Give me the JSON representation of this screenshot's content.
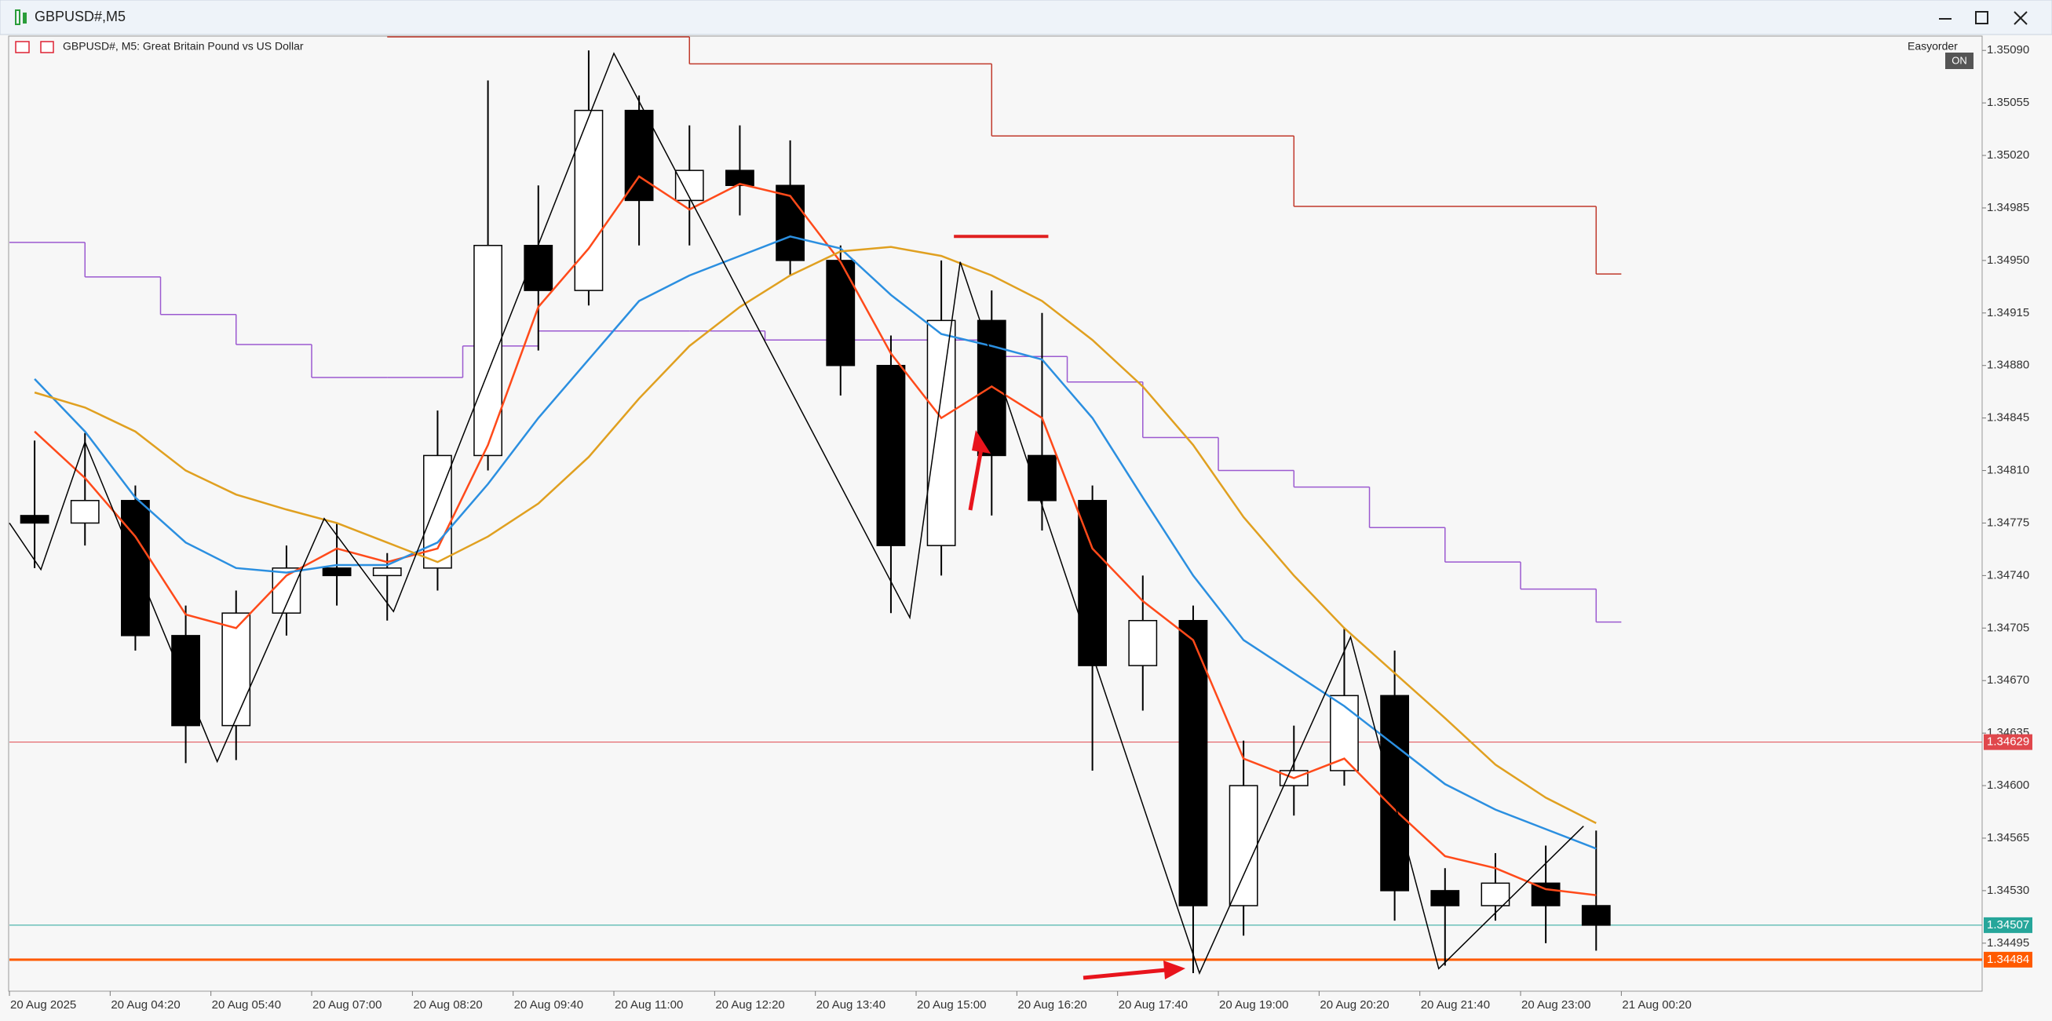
{
  "window": {
    "title": "GBPUSD#,M5",
    "expert": "Easyorder",
    "expert_state": "ON"
  },
  "chart_data": {
    "type": "candlestick",
    "title": "GBPUSD#, M5:  Great Britain Pound vs US Dollar",
    "x": [
      "20 Aug 03:00",
      "20 Aug 03:40",
      "20 Aug 04:20",
      "20 Aug 05:00",
      "20 Aug 05:40",
      "20 Aug 06:20",
      "20 Aug 07:00",
      "20 Aug 07:40",
      "20 Aug 08:20",
      "20 Aug 09:00",
      "20 Aug 09:40",
      "20 Aug 10:20",
      "20 Aug 11:00",
      "20 Aug 11:40",
      "20 Aug 12:20",
      "20 Aug 13:00",
      "20 Aug 13:40",
      "20 Aug 14:20",
      "20 Aug 15:00",
      "20 Aug 15:40",
      "20 Aug 16:20",
      "20 Aug 17:00",
      "20 Aug 17:40",
      "20 Aug 18:20",
      "20 Aug 19:00",
      "20 Aug 19:40",
      "20 Aug 20:20",
      "20 Aug 21:00",
      "20 Aug 21:40",
      "20 Aug 22:20",
      "20 Aug 23:00",
      "20 Aug 23:40"
    ],
    "open": [
      1.3478,
      1.34775,
      1.3479,
      1.347,
      1.3464,
      1.34715,
      1.34745,
      1.3474,
      1.34745,
      1.3482,
      1.3496,
      1.3493,
      1.3505,
      1.3499,
      1.3501,
      1.35,
      1.3495,
      1.3488,
      1.3476,
      1.3491,
      1.3482,
      1.3479,
      1.3468,
      1.3471,
      1.3452,
      1.346,
      1.3461,
      1.3466,
      1.3453,
      1.3452,
      1.34535,
      1.3452
    ],
    "high": [
      1.3483,
      1.34835,
      1.348,
      1.3472,
      1.3473,
      1.3476,
      1.34775,
      1.34755,
      1.3485,
      1.3507,
      1.35,
      1.3509,
      1.3506,
      1.3504,
      1.3504,
      1.3503,
      1.3496,
      1.349,
      1.3495,
      1.3493,
      1.34915,
      1.348,
      1.3474,
      1.3472,
      1.3463,
      1.3464,
      1.34705,
      1.3469,
      1.34545,
      1.34555,
      1.3456,
      1.3457
    ],
    "low": [
      1.34745,
      1.3476,
      1.3469,
      1.34615,
      1.34617,
      1.347,
      1.3472,
      1.3471,
      1.3473,
      1.3481,
      1.3489,
      1.3492,
      1.3496,
      1.3496,
      1.3498,
      1.3494,
      1.3486,
      1.34715,
      1.3474,
      1.3478,
      1.3477,
      1.3461,
      1.3465,
      1.34475,
      1.345,
      1.3458,
      1.346,
      1.3451,
      1.3448,
      1.3451,
      1.34495,
      1.3449
    ],
    "close": [
      1.34775,
      1.3479,
      1.347,
      1.3464,
      1.34715,
      1.34745,
      1.3474,
      1.34745,
      1.3482,
      1.3496,
      1.3493,
      1.3505,
      1.3499,
      1.3501,
      1.35,
      1.3495,
      1.3488,
      1.3476,
      1.3491,
      1.3482,
      1.3479,
      1.3468,
      1.3471,
      1.3452,
      1.346,
      1.3461,
      1.3466,
      1.3453,
      1.3452,
      1.34535,
      1.3452,
      1.34507
    ],
    "up_color": "#ffffff",
    "down_color": "#000000",
    "candle_border": "#000000",
    "series": [
      {
        "color": "#ff4a1a",
        "values": [
          1.34836,
          1.34805,
          1.34766,
          1.34714,
          1.34705,
          1.3474,
          1.34758,
          1.34749,
          1.34758,
          1.34827,
          1.34919,
          1.34958,
          1.35006,
          1.34984,
          1.35001,
          1.34993,
          1.34949,
          1.34888,
          1.34845,
          1.34866,
          1.34845,
          1.34758,
          1.34723,
          1.34697,
          1.34618,
          1.34605,
          1.34618,
          1.34584,
          1.34553,
          1.34545,
          1.34531,
          1.34527
        ]
      },
      {
        "color": "#2b8fe0",
        "values": [
          1.34871,
          1.34836,
          1.34792,
          1.34762,
          1.34745,
          1.34742,
          1.34747,
          1.34747,
          1.34762,
          1.34801,
          1.34845,
          1.34884,
          1.34923,
          1.3494,
          1.34953,
          1.34966,
          1.34958,
          1.34927,
          1.34901,
          1.34893,
          1.34884,
          1.34845,
          1.34792,
          1.3474,
          1.34697,
          1.34675,
          1.34653,
          1.34627,
          1.34601,
          1.34584,
          1.34571,
          1.34558
        ]
      },
      {
        "color": "#e0a020",
        "values": [
          1.34862,
          1.34852,
          1.34836,
          1.3481,
          1.34794,
          1.34784,
          1.34775,
          1.34762,
          1.34749,
          1.34766,
          1.34788,
          1.34819,
          1.34858,
          1.34893,
          1.34919,
          1.3494,
          1.34956,
          1.34959,
          1.34953,
          1.3494,
          1.34923,
          1.34897,
          1.34866,
          1.34827,
          1.34779,
          1.3474,
          1.34705,
          1.34675,
          1.34645,
          1.34614,
          1.34592,
          1.34575
        ]
      }
    ],
    "steps": [
      {
        "color": "#9b59d0",
        "x": [
          "20 Aug 03:00",
          "20 Aug 04:00",
          "20 Aug 05:00",
          "20 Aug 06:00",
          "20 Aug 07:00",
          "20 Aug 08:00",
          "20 Aug 09:00",
          "20 Aug 10:00",
          "20 Aug 11:00",
          "20 Aug 12:00",
          "20 Aug 13:00",
          "20 Aug 14:00",
          "20 Aug 15:00",
          "20 Aug 16:00",
          "20 Aug 17:00",
          "20 Aug 18:00",
          "20 Aug 19:00",
          "20 Aug 20:00",
          "20 Aug 21:00",
          "20 Aug 22:00",
          "20 Aug 23:00",
          "21 Aug 00:00"
        ],
        "values": [
          1.34962,
          1.34939,
          1.34914,
          1.34894,
          1.34872,
          1.34872,
          1.34893,
          1.34903,
          1.34903,
          1.34903,
          1.34897,
          1.34897,
          1.34897,
          1.34886,
          1.34869,
          1.34832,
          1.3481,
          1.34799,
          1.34772,
          1.34749,
          1.34731,
          1.34709
        ]
      },
      {
        "color": "#c0392b",
        "x": [
          "20 Aug 08:00",
          "20 Aug 12:00",
          "20 Aug 16:00",
          "20 Aug 20:00",
          "21 Aug 00:00"
        ],
        "values": [
          1.35099,
          1.35081,
          1.35033,
          1.34986,
          1.34941
        ]
      }
    ],
    "zigzag": {
      "color": "#000000",
      "x": [
        "20 Aug 03:00",
        "20 Aug 03:25",
        "20 Aug 04:00",
        "20 Aug 05:45",
        "20 Aug 07:10",
        "20 Aug 08:05",
        "20 Aug 11:00",
        "20 Aug 14:55",
        "20 Aug 15:35",
        "20 Aug 18:45",
        "20 Aug 20:45",
        "20 Aug 21:55",
        "20 Aug 23:50"
      ],
      "values": [
        1.34775,
        1.34744,
        1.34829,
        1.34616,
        1.34778,
        1.34716,
        1.35088,
        1.34712,
        1.34949,
        1.34475,
        1.34699,
        1.34478,
        1.34573
      ]
    },
    "segment": {
      "color": "#e02020",
      "x": [
        "20 Aug 15:30",
        "20 Aug 16:45"
      ],
      "value": 1.34966
    },
    "levels": [
      {
        "value": 1.34629,
        "color": "#e0474c",
        "width": 1
      },
      {
        "value": 1.34507,
        "color": "#26a69a",
        "width": 1
      },
      {
        "value": 1.34484,
        "color": "#ff5a00",
        "width": 3
      }
    ],
    "ylim": [
      1.34463,
      1.35099
    ],
    "yticks": [
      {
        "value": 1.3509,
        "label": "1.35090"
      },
      1.35055,
      {
        "value": 1.3502,
        "label": "1.35020"
      },
      1.34985,
      {
        "value": 1.3495,
        "label": "1.34950"
      },
      1.34915,
      {
        "value": 1.3488,
        "label": "1.34880"
      },
      1.34845,
      {
        "value": 1.3481,
        "label": "1.34810"
      },
      1.34775,
      {
        "value": 1.3474,
        "label": "1.34740"
      },
      1.34705,
      {
        "value": 1.3467,
        "label": "1.34670"
      },
      1.34635,
      {
        "value": 1.346,
        "label": "1.34600"
      },
      1.34565,
      {
        "value": 1.3453,
        "label": "1.34530"
      },
      1.34495
    ],
    "xticks": [
      "20 Aug 2025",
      "20 Aug 04:20",
      "20 Aug 05:40",
      "20 Aug 07:00",
      "20 Aug 08:20",
      "20 Aug 09:40",
      "20 Aug 11:00",
      "20 Aug 12:20",
      "20 Aug 13:40",
      "20 Aug 15:00",
      "20 Aug 16:20",
      "20 Aug 17:40",
      "20 Aug 19:00",
      "20 Aug 20:20",
      "20 Aug 21:40",
      "20 Aug 23:00",
      "21 Aug 00:20"
    ]
  }
}
